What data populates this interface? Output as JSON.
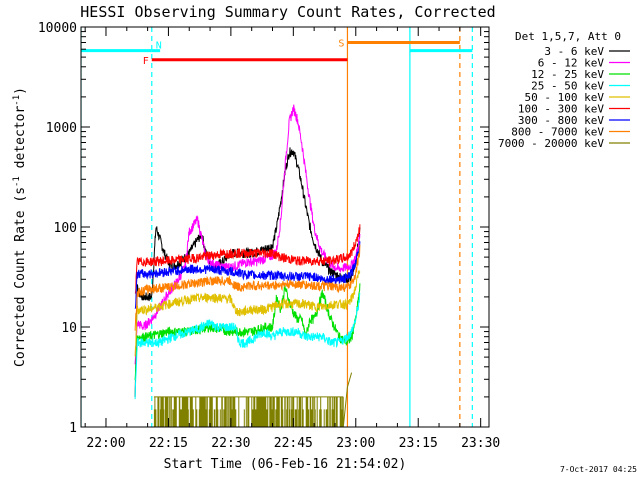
{
  "chart_data": {
    "type": "line",
    "title": "HESSI Observing Summary Count Rates, Corrected",
    "xlabel": "Start Time (06-Feb-16 21:54:02)",
    "ylabel": "Corrected Count Rate (s",
    "ylabel_sup1": "-1",
    "ylabel_mid": " detector",
    "ylabel_sup2": "-1",
    "ylabel_end": ")",
    "timestamp": "7-Oct-2017 04:25",
    "x_unit": "minutes since 00:00 UT (axis ticks in HH:MM)",
    "xlim": [
      1314,
      1412
    ],
    "ylim": [
      1,
      10000
    ],
    "yscale": "log",
    "x_ticks": [
      {
        "v": 1320,
        "label": "22:00"
      },
      {
        "v": 1335,
        "label": "22:15"
      },
      {
        "v": 1350,
        "label": "22:30"
      },
      {
        "v": 1365,
        "label": "22:45"
      },
      {
        "v": 1380,
        "label": "23:00"
      },
      {
        "v": 1395,
        "label": "23:15"
      },
      {
        "v": 1410,
        "label": "23:30"
      }
    ],
    "y_ticks": [
      {
        "v": 1,
        "label": "1"
      },
      {
        "v": 10,
        "label": "10"
      },
      {
        "v": 100,
        "label": "100"
      },
      {
        "v": 1000,
        "label": "1000"
      },
      {
        "v": 10000,
        "label": "10000"
      }
    ],
    "legend_header": "Det 1,5,7, Att 0",
    "legend_position": "right",
    "series": [
      {
        "name": "3 - 6 keV",
        "color": "#000000",
        "x": [
          1327,
          1327.5,
          1328,
          1329,
          1331,
          1332,
          1333,
          1334,
          1335,
          1336,
          1338,
          1340,
          1342,
          1343,
          1344,
          1345,
          1346,
          1348,
          1350,
          1352,
          1355,
          1358,
          1360,
          1361,
          1362,
          1363,
          1364,
          1365,
          1366,
          1367,
          1368,
          1369,
          1370,
          1372,
          1374,
          1376,
          1378,
          1379,
          1380,
          1381
        ],
        "y": [
          2,
          25,
          22,
          20,
          20,
          100,
          75,
          55,
          45,
          40,
          45,
          55,
          75,
          85,
          55,
          45,
          40,
          45,
          55,
          55,
          55,
          60,
          65,
          100,
          180,
          350,
          560,
          580,
          420,
          270,
          160,
          100,
          70,
          45,
          36,
          32,
          30,
          32,
          45,
          95
        ]
      },
      {
        "name": "6 - 12 keV",
        "color": "#ff00ff",
        "x": [
          1327,
          1327.5,
          1329,
          1331,
          1333,
          1335,
          1337,
          1339,
          1340,
          1342,
          1344,
          1346,
          1348,
          1350,
          1352,
          1354,
          1356,
          1358,
          1360,
          1361,
          1362,
          1363,
          1364,
          1365,
          1366,
          1367,
          1368,
          1369,
          1370,
          1371,
          1372,
          1374,
          1376,
          1378,
          1379,
          1380,
          1381
        ],
        "y": [
          4,
          11,
          10,
          12,
          16,
          22,
          28,
          40,
          90,
          120,
          50,
          42,
          40,
          40,
          42,
          45,
          45,
          48,
          52,
          60,
          120,
          400,
          1100,
          1550,
          1200,
          700,
          350,
          180,
          100,
          70,
          55,
          42,
          38,
          40,
          42,
          50,
          80
        ]
      },
      {
        "name": "12 - 25 keV",
        "color": "#00e000",
        "x": [
          1327,
          1327.5,
          1330,
          1335,
          1340,
          1345,
          1350,
          1355,
          1358,
          1360,
          1361,
          1362,
          1363,
          1364,
          1365,
          1366,
          1367,
          1368,
          1369,
          1370,
          1371,
          1372,
          1374,
          1376,
          1378,
          1379,
          1380,
          1381
        ],
        "y": [
          3,
          8,
          8,
          9,
          9,
          10,
          9,
          9,
          10,
          10,
          20,
          15,
          25,
          18,
          14,
          12,
          12,
          8,
          12,
          12,
          16,
          22,
          12,
          8,
          7,
          8,
          12,
          25
        ]
      },
      {
        "name": "25 - 50 keV",
        "color": "#00ffff",
        "x": [
          1327,
          1327.5,
          1330,
          1333,
          1336,
          1340,
          1343,
          1345,
          1347,
          1349,
          1351,
          1352,
          1354,
          1356,
          1358,
          1360,
          1362,
          1364,
          1366,
          1368,
          1370,
          1372,
          1374,
          1376,
          1378,
          1379,
          1380,
          1381
        ],
        "y": [
          2,
          7,
          7,
          7,
          8,
          9,
          10,
          11,
          10,
          10,
          10,
          7,
          7,
          8,
          9,
          8,
          9,
          9,
          9,
          8,
          8,
          8,
          7,
          7,
          8,
          9,
          12,
          20
        ]
      },
      {
        "name": "50 - 100 keV",
        "color": "#e0c000",
        "x": [
          1327,
          1327.5,
          1330,
          1335,
          1340,
          1345,
          1350,
          1351,
          1352,
          1355,
          1358,
          1360,
          1362,
          1365,
          1368,
          1370,
          1372,
          1375,
          1378,
          1379,
          1380,
          1381
        ],
        "y": [
          5,
          15,
          15,
          17,
          19,
          20,
          19,
          15,
          14,
          15,
          15,
          16,
          17,
          17,
          17,
          16,
          16,
          17,
          17,
          19,
          25,
          40
        ]
      },
      {
        "name": "100 - 300 keV",
        "color": "#ff0000",
        "x": [
          1327,
          1327.5,
          1330,
          1335,
          1340,
          1345,
          1350,
          1355,
          1360,
          1362,
          1364,
          1366,
          1368,
          1370,
          1372,
          1374,
          1376,
          1378,
          1379,
          1380,
          1381
        ],
        "y": [
          20,
          45,
          45,
          46,
          48,
          52,
          55,
          55,
          55,
          50,
          48,
          46,
          46,
          46,
          46,
          46,
          48,
          50,
          56,
          70,
          100
        ]
      },
      {
        "name": "300 - 800 keV",
        "color": "#0000ff",
        "x": [
          1327,
          1327.5,
          1330,
          1335,
          1340,
          1345,
          1350,
          1355,
          1360,
          1365,
          1370,
          1372,
          1374,
          1376,
          1378,
          1379,
          1380,
          1381
        ],
        "y": [
          15,
          34,
          34,
          36,
          38,
          38,
          36,
          33,
          33,
          32,
          32,
          30,
          30,
          30,
          31,
          35,
          45,
          70
        ]
      },
      {
        "name": "800 - 7000 keV",
        "color": "#ff8000",
        "x": [
          1327,
          1327.5,
          1330,
          1335,
          1340,
          1345,
          1350,
          1351,
          1352,
          1355,
          1360,
          1365,
          1370,
          1375,
          1378,
          1379,
          1380,
          1381
        ],
        "y": [
          10,
          22,
          24,
          25,
          27,
          29,
          29,
          26,
          25,
          26,
          26,
          27,
          26,
          25,
          25,
          27,
          35,
          60
        ]
      },
      {
        "name": "7000 - 20000 keV",
        "color": "#808000",
        "x": [
          1331.5,
          1379
        ],
        "y": [
          1.5,
          3.5
        ]
      }
    ],
    "series_legend_labels": [
      "3 - 6 keV",
      "6 - 12 keV",
      "12 - 25 keV",
      "25 - 50 keV",
      "50 - 100 keV",
      "100 - 300 keV",
      "300 - 800 keV",
      "800 - 7000 keV",
      "7000 - 20000 keV"
    ],
    "state_bars": [
      {
        "label": "",
        "x0": 1314,
        "x1": 1331,
        "y": 5800,
        "color": "#00ffff"
      },
      {
        "label": "N",
        "x0": 1331,
        "x1": 1333,
        "y": 5800,
        "color": "#00ffff"
      },
      {
        "label": "F",
        "x0": 1331,
        "x1": 1378,
        "y": 4700,
        "color": "#ff0000"
      },
      {
        "label": "S",
        "x0": 1378,
        "x1": 1405,
        "y": 7000,
        "color": "#ff8000"
      },
      {
        "label": "",
        "x0": 1393,
        "x1": 1408,
        "y": 5800,
        "color": "#00ffff"
      }
    ],
    "vlines": [
      {
        "x": 1314,
        "color": "#00ffff",
        "style": "solid"
      },
      {
        "x": 1331,
        "color": "#00ffff",
        "style": "dashed"
      },
      {
        "x": 1378,
        "color": "#ff8000",
        "style": "solid"
      },
      {
        "x": 1393,
        "color": "#00ffff",
        "style": "solid"
      },
      {
        "x": 1405,
        "color": "#ff8000",
        "style": "dashed"
      },
      {
        "x": 1408,
        "color": "#00ffff",
        "style": "dashed"
      }
    ],
    "grid": false
  }
}
